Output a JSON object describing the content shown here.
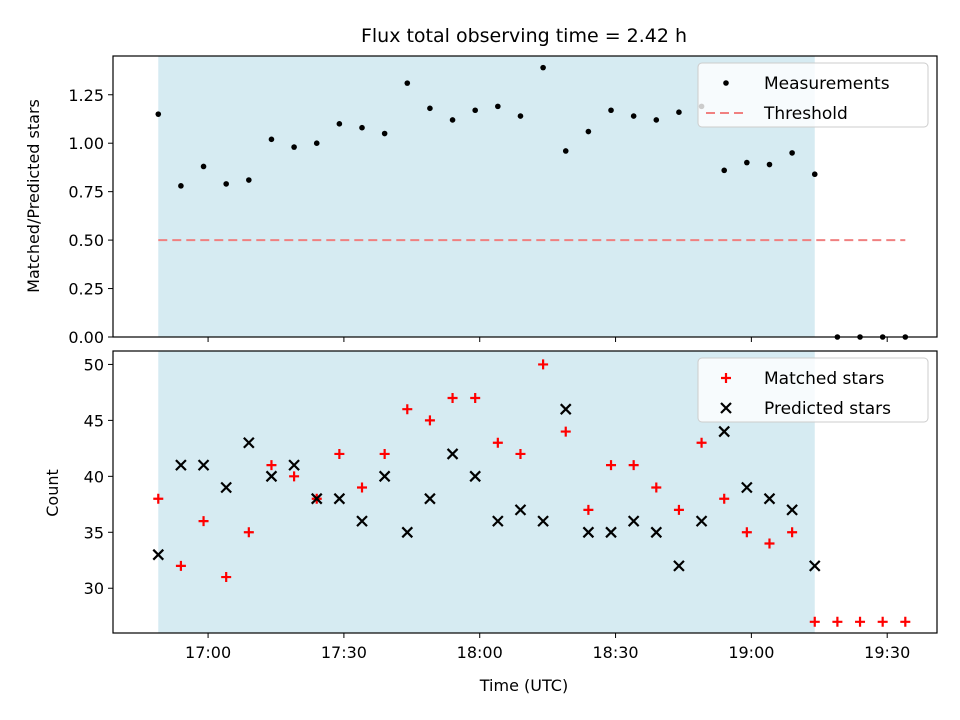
{
  "chart_data": [
    {
      "type": "scatter",
      "title": "Flux total observing time = 2.42 h",
      "xlabel": "",
      "ylabel": "Matched/Predicted stars",
      "ylim": [
        0,
        1.45
      ],
      "yticks": [
        0.0,
        0.25,
        0.5,
        0.75,
        1.0,
        1.25
      ],
      "ytick_labels": [
        "0.00",
        "0.25",
        "0.50",
        "0.75",
        "1.00",
        "1.25"
      ],
      "x": [
        "16:49",
        "16:54",
        "16:59",
        "17:04",
        "17:09",
        "17:14",
        "17:19",
        "17:24",
        "17:29",
        "17:34",
        "17:39",
        "17:44",
        "17:49",
        "17:54",
        "17:59",
        "18:04",
        "18:09",
        "18:14",
        "18:19",
        "18:24",
        "18:29",
        "18:34",
        "18:39",
        "18:44",
        "18:49",
        "18:54",
        "18:59",
        "19:04",
        "19:09",
        "19:14",
        "19:19",
        "19:24",
        "19:29",
        "19:34"
      ],
      "series": [
        {
          "name": "Measurements",
          "marker": "dot",
          "color": "#000000",
          "values": [
            1.15,
            0.78,
            0.88,
            0.79,
            0.81,
            1.02,
            0.98,
            1.0,
            1.1,
            1.08,
            1.05,
            1.31,
            1.18,
            1.12,
            1.17,
            1.19,
            1.14,
            1.39,
            0.96,
            1.06,
            1.17,
            1.14,
            1.12,
            1.16,
            1.19,
            0.86,
            0.9,
            0.89,
            0.95,
            0.84,
            0.0,
            0.0,
            0.0,
            0.0
          ]
        },
        {
          "name": "Threshold",
          "marker": "dashed-line",
          "color": "#f08080",
          "value": 0.5,
          "x_range": [
            "16:49",
            "19:34"
          ]
        }
      ],
      "shaded_span": {
        "x_start": "16:49",
        "x_end": "19:14",
        "color": "#add8e6"
      },
      "legend": "top-right",
      "grid": false
    },
    {
      "type": "scatter",
      "title": "",
      "xlabel": "Time (UTC)",
      "ylabel": "Count",
      "ylim": [
        26,
        51.2
      ],
      "yticks": [
        30,
        35,
        40,
        45,
        50
      ],
      "ytick_labels": [
        "30",
        "35",
        "40",
        "45",
        "50"
      ],
      "xlim": [
        "16:39",
        "19:41"
      ],
      "xticks": [
        "17:00",
        "17:30",
        "18:00",
        "18:30",
        "19:00",
        "19:30"
      ],
      "xtick_labels": [
        "17:00",
        "17:30",
        "18:00",
        "18:30",
        "19:00",
        "19:30"
      ],
      "x": [
        "16:49",
        "16:54",
        "16:59",
        "17:04",
        "17:09",
        "17:14",
        "17:19",
        "17:24",
        "17:29",
        "17:34",
        "17:39",
        "17:44",
        "17:49",
        "17:54",
        "17:59",
        "18:04",
        "18:09",
        "18:14",
        "18:19",
        "18:24",
        "18:29",
        "18:34",
        "18:39",
        "18:44",
        "18:49",
        "18:54",
        "18:59",
        "19:04",
        "19:09",
        "19:14",
        "19:19",
        "19:24",
        "19:29",
        "19:34"
      ],
      "series": [
        {
          "name": "Matched stars",
          "marker": "plus",
          "color": "#ff0000",
          "values": [
            38,
            32,
            36,
            31,
            35,
            41,
            40,
            38,
            42,
            39,
            42,
            46,
            45,
            47,
            47,
            43,
            42,
            50,
            44,
            37,
            41,
            41,
            39,
            37,
            43,
            38,
            35,
            34,
            35,
            27,
            27,
            27,
            27,
            27
          ]
        },
        {
          "name": "Predicted stars",
          "marker": "x",
          "color": "#000000",
          "values": [
            33,
            41,
            41,
            39,
            43,
            40,
            41,
            38,
            38,
            36,
            40,
            35,
            38,
            42,
            40,
            36,
            37,
            36,
            46,
            35,
            35,
            36,
            35,
            32,
            36,
            44,
            39,
            38,
            37,
            32
          ]
        }
      ],
      "shaded_span": {
        "x_start": "16:49",
        "x_end": "19:14",
        "color": "#add8e6"
      },
      "legend": "top-right",
      "grid": false
    }
  ]
}
